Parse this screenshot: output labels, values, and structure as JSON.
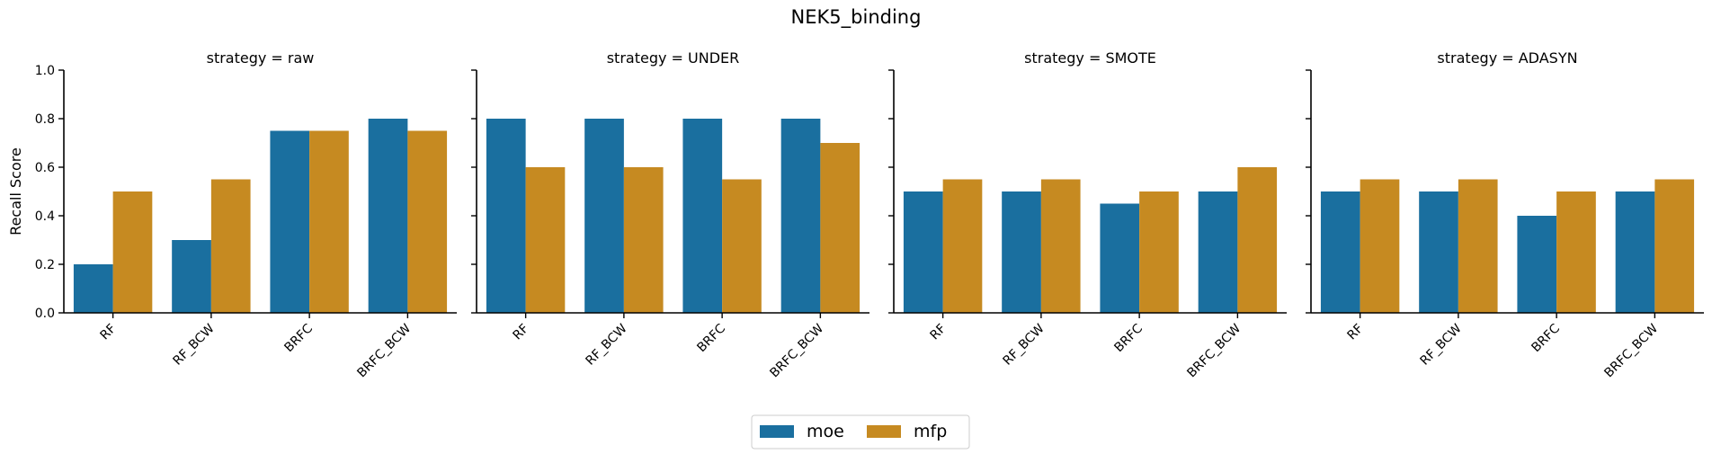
{
  "chart_data": {
    "type": "bar",
    "title": "NEK5_binding",
    "ylabel": "Recall Score",
    "ylim": [
      0,
      1.0
    ],
    "yticks": [
      "0.0",
      "0.2",
      "0.4",
      "0.6",
      "0.8",
      "1.0"
    ],
    "categories": [
      "RF",
      "RF_BCW",
      "BRFC",
      "BRFC_BCW"
    ],
    "legend_position": "bottom-center",
    "grid": false,
    "colors": {
      "moe": "#1a6f9f",
      "mfp": "#c68a21"
    },
    "series_names": [
      "moe",
      "mfp"
    ],
    "panels": [
      {
        "title": "strategy = raw",
        "series": [
          {
            "name": "moe",
            "values": [
              0.2,
              0.3,
              0.75,
              0.8
            ]
          },
          {
            "name": "mfp",
            "values": [
              0.5,
              0.55,
              0.75,
              0.75
            ]
          }
        ]
      },
      {
        "title": "strategy = UNDER",
        "series": [
          {
            "name": "moe",
            "values": [
              0.8,
              0.8,
              0.8,
              0.8
            ]
          },
          {
            "name": "mfp",
            "values": [
              0.6,
              0.6,
              0.55,
              0.7
            ]
          }
        ]
      },
      {
        "title": "strategy = SMOTE",
        "series": [
          {
            "name": "moe",
            "values": [
              0.5,
              0.5,
              0.45,
              0.5
            ]
          },
          {
            "name": "mfp",
            "values": [
              0.55,
              0.55,
              0.5,
              0.6
            ]
          }
        ]
      },
      {
        "title": "strategy = ADASYN",
        "series": [
          {
            "name": "moe",
            "values": [
              0.5,
              0.5,
              0.4,
              0.5
            ]
          },
          {
            "name": "mfp",
            "values": [
              0.55,
              0.55,
              0.5,
              0.55
            ]
          }
        ]
      }
    ]
  }
}
